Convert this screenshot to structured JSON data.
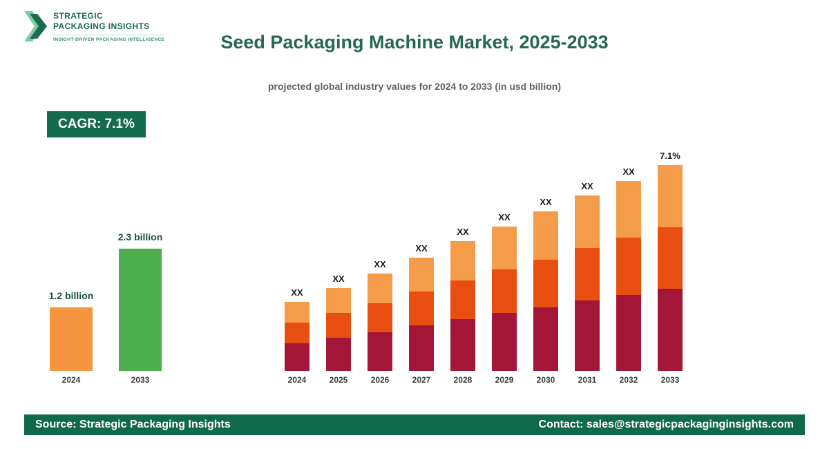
{
  "colors": {
    "brand_green": "#1a6b50",
    "brand_green_light": "#7dc9a5",
    "title_green": "#26684e",
    "badge_bg": "#156b4d",
    "footer_bg": "#0e6a4b",
    "mini_bar_2024": "#f5953f",
    "mini_bar_2033": "#4cae4f",
    "stack_bottom": "#a31638",
    "stack_middle": "#e84e0f",
    "stack_top": "#f59c4a"
  },
  "logo": {
    "line1": "STRATEGIC",
    "line2": "PACKAGING INSIGHTS",
    "tagline": "INSIGHT-DRIVEN PACKAGING INTELLIGENCE"
  },
  "header": {
    "title": "Seed Packaging Machine Market, 2025-2033",
    "subtitle": "projected global industry values for 2024 to 2033 (in usd billion)"
  },
  "badge": {
    "label": "CAGR: 7.1%"
  },
  "mini_chart": {
    "bars": [
      {
        "year": "2024",
        "label": "1.2 billion",
        "value": 1.2,
        "color": "#f5953f"
      },
      {
        "year": "2033",
        "label": "2.3 billion",
        "value": 2.3,
        "color": "#4cae4f"
      }
    ]
  },
  "chart_data": {
    "type": "bar",
    "stacked": true,
    "title": "Seed Packaging Machine Market, 2025-2033",
    "subtitle": "projected global industry values for 2024 to 2033 (in usd billion)",
    "cagr": "7.1%",
    "categories": [
      "2024",
      "2025",
      "2026",
      "2027",
      "2028",
      "2029",
      "2030",
      "2031",
      "2032",
      "2033"
    ],
    "bar_top_labels": [
      "XX",
      "XX",
      "XX",
      "XX",
      "XX",
      "XX",
      "XX",
      "XX",
      "XX",
      "7.1%"
    ],
    "series": [
      {
        "name": "bottom",
        "color": "#a31638",
        "values": [
          40,
          48,
          56,
          66,
          75,
          84,
          92,
          102,
          110,
          119
        ]
      },
      {
        "name": "middle",
        "color": "#e84e0f",
        "values": [
          30,
          36,
          42,
          49,
          56,
          63,
          69,
          76,
          83,
          89
        ]
      },
      {
        "name": "top",
        "color": "#f59c4a",
        "values": [
          30,
          36,
          43,
          49,
          57,
          62,
          70,
          76,
          82,
          90
        ]
      }
    ],
    "small_chart": {
      "categories": [
        "2024",
        "2033"
      ],
      "values": [
        1.2,
        2.3
      ],
      "value_labels": [
        "1.2 billion",
        "2.3 billion"
      ],
      "unit": "usd billion"
    },
    "legend_position": "none",
    "grid": false
  },
  "footer": {
    "source": "Source: Strategic Packaging Insights",
    "contact": "Contact: sales@strategicpackaginginsights.com"
  }
}
